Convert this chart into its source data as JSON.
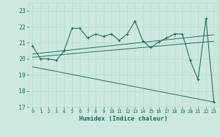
{
  "xlabel": "Humidex (Indice chaleur)",
  "background_color": "#cce8e0",
  "line_color": "#1a6b5a",
  "xlim": [
    -0.5,
    23.5
  ],
  "ylim": [
    17,
    23.5
  ],
  "yticks": [
    17,
    18,
    19,
    20,
    21,
    22,
    23
  ],
  "xticks": [
    0,
    1,
    2,
    3,
    4,
    5,
    6,
    7,
    8,
    9,
    10,
    11,
    12,
    13,
    14,
    15,
    16,
    17,
    18,
    19,
    20,
    21,
    22,
    23
  ],
  "series1_x": [
    0,
    1,
    2,
    3,
    4,
    5,
    6,
    7,
    8,
    9,
    10,
    11,
    12,
    13,
    14,
    15,
    16,
    17,
    18,
    19,
    20,
    21,
    22,
    23
  ],
  "series1_y": [
    20.8,
    20.0,
    20.0,
    19.9,
    20.5,
    21.9,
    21.9,
    21.3,
    21.55,
    21.4,
    21.55,
    21.15,
    21.55,
    22.35,
    21.1,
    20.7,
    21.05,
    21.3,
    21.55,
    21.55,
    19.9,
    18.7,
    22.5,
    17.3
  ],
  "series2_x": [
    0,
    23
  ],
  "series2_y": [
    20.3,
    21.5
  ],
  "series3_x": [
    0,
    23
  ],
  "series3_y": [
    20.1,
    21.1
  ],
  "series4_x": [
    0,
    23
  ],
  "series4_y": [
    19.5,
    17.3
  ],
  "grid_color": "#b8d8d0",
  "font_color": "#1a6b5a"
}
